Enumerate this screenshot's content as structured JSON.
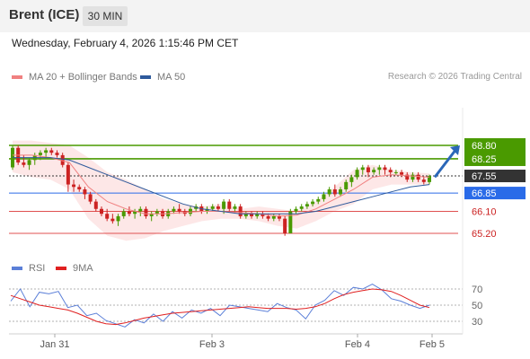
{
  "header": {
    "instrument": "Brent (ICE)",
    "timeframe": "30 MIN"
  },
  "datetime": "Wednesday, February 4, 2026 1:15:46 PM CET",
  "legend": [
    {
      "label": "MA 20 + Bollinger Bands",
      "color": "#f08080"
    },
    {
      "label": "MA 50",
      "color": "#2e5a9c"
    }
  ],
  "credit": "Research © 2026 Trading Central",
  "rsi_legend": [
    {
      "label": "RSI",
      "color": "#5b7fd8"
    },
    {
      "label": "9MA",
      "color": "#e02020"
    }
  ],
  "chart_data": [
    {
      "type": "candlestick",
      "ylim": [
        64.6,
        69.3
      ],
      "x_ticks": [
        "Jan 31",
        "Feb 3",
        "Feb 4",
        "Feb 5"
      ],
      "levels": [
        {
          "value": 68.8,
          "label": "68.80",
          "style": "resistance",
          "color": "#4a9a00"
        },
        {
          "value": 68.25,
          "label": "68.25",
          "style": "resistance",
          "color": "#4a9a00"
        },
        {
          "value": 67.55,
          "label": "67.55",
          "style": "current",
          "color": "#333333"
        },
        {
          "value": 66.85,
          "label": "66.85",
          "style": "pivot",
          "color": "#2a6be8"
        },
        {
          "value": 66.1,
          "label": "66.10",
          "style": "support",
          "color": "#e05050"
        },
        {
          "value": 65.2,
          "label": "65.20",
          "style": "support",
          "color": "#e05050"
        }
      ],
      "arrow": {
        "direction": "up",
        "from": 67.5,
        "to": 68.8
      },
      "candles": [
        [
          67.9,
          68.8,
          67.8,
          68.7
        ],
        [
          68.7,
          68.8,
          68.0,
          68.1
        ],
        [
          68.1,
          68.4,
          67.9,
          68.0
        ],
        [
          68.0,
          68.3,
          67.8,
          68.2
        ],
        [
          68.2,
          68.5,
          68.0,
          68.4
        ],
        [
          68.4,
          68.6,
          68.2,
          68.5
        ],
        [
          68.5,
          68.7,
          68.3,
          68.6
        ],
        [
          68.6,
          68.7,
          68.4,
          68.5
        ],
        [
          68.5,
          68.6,
          68.3,
          68.4
        ],
        [
          68.4,
          68.5,
          67.9,
          68.0
        ],
        [
          68.0,
          68.1,
          66.9,
          67.2
        ],
        [
          67.2,
          67.4,
          66.9,
          67.1
        ],
        [
          67.1,
          67.2,
          66.9,
          67.0
        ],
        [
          67.0,
          67.1,
          66.6,
          66.8
        ],
        [
          66.8,
          66.9,
          66.4,
          66.5
        ],
        [
          66.5,
          66.6,
          66.1,
          66.2
        ],
        [
          66.2,
          66.3,
          65.9,
          66.0
        ],
        [
          66.0,
          66.2,
          65.7,
          65.8
        ],
        [
          65.8,
          66.0,
          65.6,
          65.7
        ],
        [
          65.7,
          66.0,
          65.5,
          65.9
        ],
        [
          65.9,
          66.2,
          65.8,
          66.1
        ],
        [
          66.1,
          66.3,
          65.9,
          66.0
        ],
        [
          66.0,
          66.2,
          65.8,
          66.1
        ],
        [
          66.1,
          66.3,
          65.9,
          66.2
        ],
        [
          66.2,
          66.3,
          65.8,
          65.9
        ],
        [
          65.9,
          66.1,
          65.7,
          66.0
        ],
        [
          66.0,
          66.2,
          65.9,
          66.1
        ],
        [
          66.1,
          66.2,
          65.8,
          65.9
        ],
        [
          65.9,
          66.2,
          65.8,
          66.1
        ],
        [
          66.1,
          66.3,
          66.0,
          66.2
        ],
        [
          66.2,
          66.4,
          66.0,
          66.1
        ],
        [
          66.1,
          66.2,
          65.9,
          66.0
        ],
        [
          66.0,
          66.3,
          65.9,
          66.2
        ],
        [
          66.2,
          66.4,
          66.1,
          66.3
        ],
        [
          66.3,
          66.4,
          66.0,
          66.1
        ],
        [
          66.1,
          66.3,
          66.0,
          66.2
        ],
        [
          66.2,
          66.4,
          66.1,
          66.3
        ],
        [
          66.3,
          66.4,
          66.1,
          66.2
        ],
        [
          66.2,
          66.6,
          66.0,
          66.5
        ],
        [
          66.5,
          66.6,
          66.1,
          66.2
        ],
        [
          66.2,
          66.4,
          66.1,
          66.3
        ],
        [
          66.3,
          66.4,
          65.8,
          65.9
        ],
        [
          65.9,
          66.1,
          65.8,
          66.0
        ],
        [
          66.0,
          66.1,
          65.8,
          65.9
        ],
        [
          65.9,
          66.1,
          65.8,
          66.0
        ],
        [
          66.0,
          66.1,
          65.8,
          65.9
        ],
        [
          65.9,
          66.0,
          65.7,
          65.8
        ],
        [
          65.8,
          66.0,
          65.7,
          65.9
        ],
        [
          65.9,
          66.0,
          65.7,
          65.8
        ],
        [
          65.8,
          65.9,
          65.1,
          65.2
        ],
        [
          65.2,
          66.2,
          65.2,
          66.1
        ],
        [
          66.1,
          66.3,
          66.0,
          66.2
        ],
        [
          66.2,
          66.4,
          66.1,
          66.3
        ],
        [
          66.3,
          66.5,
          66.2,
          66.4
        ],
        [
          66.4,
          66.6,
          66.3,
          66.5
        ],
        [
          66.5,
          66.7,
          66.4,
          66.6
        ],
        [
          66.6,
          66.9,
          66.5,
          66.8
        ],
        [
          66.8,
          67.1,
          66.7,
          67.0
        ],
        [
          67.0,
          67.2,
          66.7,
          66.8
        ],
        [
          66.8,
          67.1,
          66.7,
          67.0
        ],
        [
          67.0,
          67.4,
          66.9,
          67.3
        ],
        [
          67.3,
          67.6,
          67.1,
          67.5
        ],
        [
          67.5,
          67.9,
          67.4,
          67.8
        ],
        [
          67.8,
          68.0,
          67.6,
          67.9
        ],
        [
          67.9,
          68.0,
          67.5,
          67.7
        ],
        [
          67.7,
          67.9,
          67.6,
          67.8
        ],
        [
          67.8,
          68.0,
          67.6,
          67.9
        ],
        [
          67.9,
          68.0,
          67.6,
          67.8
        ],
        [
          67.8,
          67.9,
          67.5,
          67.7
        ],
        [
          67.7,
          67.8,
          67.6,
          67.7
        ],
        [
          67.7,
          67.8,
          67.5,
          67.6
        ],
        [
          67.6,
          67.7,
          67.3,
          67.4
        ],
        [
          67.4,
          67.7,
          67.3,
          67.6
        ],
        [
          67.6,
          67.7,
          67.3,
          67.4
        ],
        [
          67.4,
          67.5,
          67.2,
          67.3
        ],
        [
          67.3,
          67.6,
          67.2,
          67.55
        ]
      ],
      "bollinger": {
        "upper": [
          69.0,
          69.0,
          68.9,
          68.8,
          68.3,
          67.7,
          67.4,
          67.0,
          66.6,
          66.4,
          66.3,
          66.4,
          66.2,
          66.3,
          66.2,
          66.1,
          66.5,
          67.1,
          67.8,
          68.0,
          67.8,
          67.7,
          67.65
        ],
        "lower": [
          67.7,
          67.5,
          67.4,
          67.0,
          65.8,
          65.1,
          64.9,
          65.0,
          65.3,
          65.5,
          65.7,
          65.8,
          65.8,
          65.7,
          65.5,
          65.4,
          65.7,
          66.1,
          66.4,
          67.0,
          67.2,
          67.2,
          67.2
        ]
      },
      "ma20": [
        68.4,
        68.4,
        68.3,
        68.1,
        67.1,
        66.5,
        66.2,
        66.0,
        66.0,
        66.05,
        66.1,
        66.1,
        66.05,
        66.0,
        65.9,
        65.95,
        66.2,
        66.6,
        67.0,
        67.5,
        67.6,
        67.55,
        67.5
      ],
      "ma50": [
        68.3,
        68.3,
        68.3,
        68.2,
        67.9,
        67.6,
        67.3,
        67.0,
        66.7,
        66.4,
        66.2,
        66.1,
        66.0,
        66.0,
        66.0,
        66.0,
        66.1,
        66.3,
        66.5,
        66.7,
        66.9,
        67.1,
        67.2
      ]
    },
    {
      "type": "line",
      "y_ticks": [
        70,
        50,
        30
      ],
      "series": [
        {
          "name": "RSI",
          "values": [
            55,
            70,
            48,
            66,
            64,
            67,
            47,
            50,
            37,
            40,
            31,
            27,
            23,
            32,
            28,
            39,
            30,
            42,
            34,
            44,
            40,
            46,
            37,
            50,
            48,
            46,
            44,
            42,
            52,
            47,
            44,
            33,
            50,
            56,
            68,
            62,
            72,
            70,
            76,
            69,
            58,
            55,
            50,
            46,
            50
          ]
        },
        {
          "name": "9MA",
          "values": [
            62,
            58,
            54,
            50,
            48,
            46,
            44,
            40,
            35,
            30,
            27,
            26,
            28,
            31,
            34,
            36,
            38,
            40,
            41,
            42,
            43,
            44,
            45,
            46,
            47,
            48,
            47,
            46,
            46,
            46,
            45,
            46,
            48,
            52,
            58,
            63,
            66,
            68,
            70,
            69,
            67,
            62,
            56,
            50,
            47
          ]
        }
      ]
    }
  ]
}
